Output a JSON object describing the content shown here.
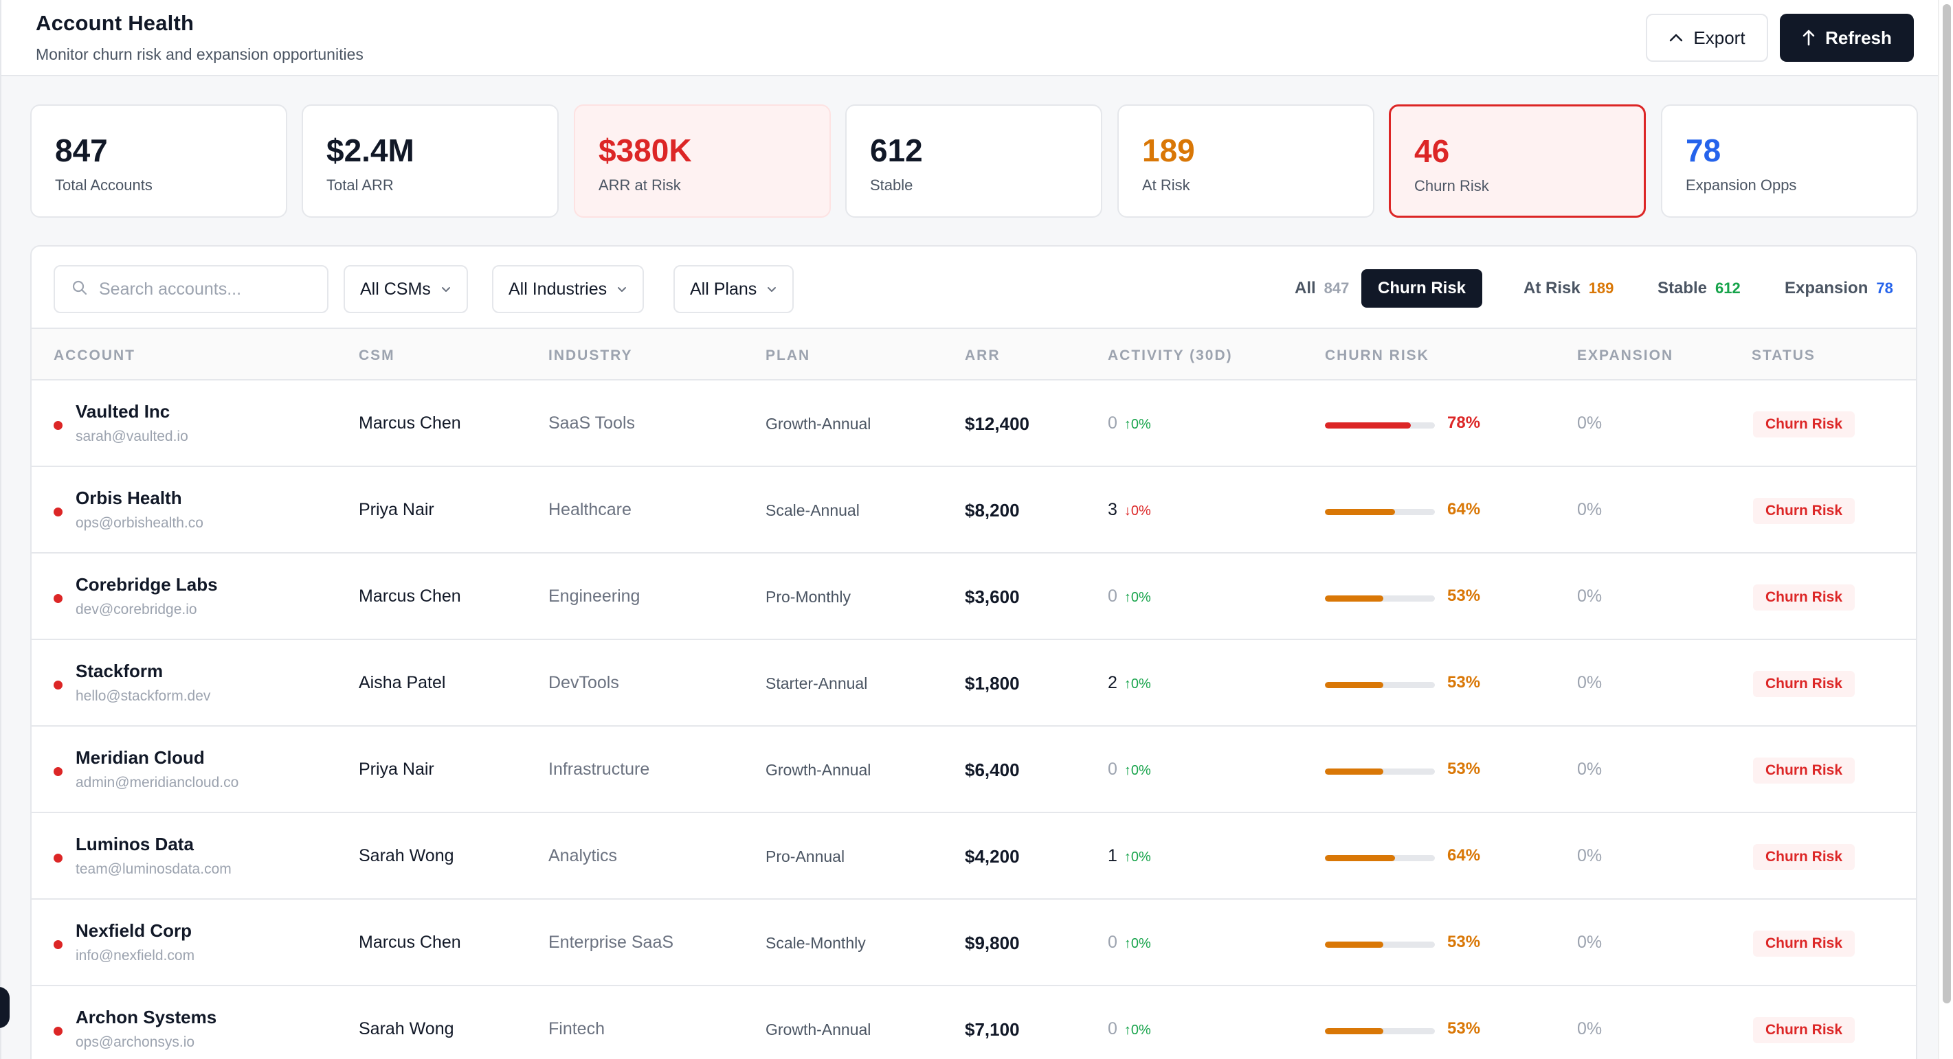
{
  "header": {
    "title": "Account Health",
    "subtitle": "Monitor churn risk and expansion opportunities",
    "export_label": "Export",
    "refresh_label": "Refresh"
  },
  "stats": [
    {
      "value": "847",
      "label": "Total Accounts",
      "color": "#111827"
    },
    {
      "value": "$2.4M",
      "label": "Total ARR",
      "color": "#111827"
    },
    {
      "value": "$380K",
      "label": "ARR at Risk",
      "color": "#dc2626"
    },
    {
      "value": "612",
      "label": "Stable",
      "color": "#111827"
    },
    {
      "value": "189",
      "label": "At Risk",
      "color": "#d97706"
    },
    {
      "value": "46",
      "label": "Churn Risk",
      "color": "#dc2626"
    },
    {
      "value": "78",
      "label": "Expansion Opps",
      "color": "#2563eb"
    }
  ],
  "filters": {
    "search_placeholder": "Search accounts...",
    "csm": "All CSMs",
    "industry": "All Industries",
    "plan": "All Plans"
  },
  "tabs": [
    {
      "label": "All",
      "count": "847",
      "count_color": "#9ca3af"
    },
    {
      "label": "Churn Risk",
      "count": "",
      "count_color": "#ffffff"
    },
    {
      "label": "At Risk",
      "count": "189",
      "count_color": "#d97706"
    },
    {
      "label": "Stable",
      "count": "612",
      "count_color": "#16a34a"
    },
    {
      "label": "Expansion",
      "count": "78",
      "count_color": "#2563eb"
    }
  ],
  "table": {
    "columns": [
      "ACCOUNT",
      "CSM",
      "INDUSTRY",
      "PLAN",
      "ARR",
      "ACTIVITY (30D)",
      "CHURN RISK",
      "EXPANSION",
      "STATUS"
    ],
    "rows": [
      {
        "name": "Vaulted Inc",
        "email": "sarah@vaulted.io",
        "csm": "Marcus Chen",
        "industry": "SaaS Tools",
        "plan": "Growth-Annual",
        "arr": "$12,400",
        "activity": "0",
        "trend": "↑0%",
        "trend_dir": "up",
        "risk": 78,
        "risk_label": "78%",
        "expansion": "0%",
        "status": "Churn Risk"
      },
      {
        "name": "Orbis Health",
        "email": "ops@orbishealth.co",
        "csm": "Priya Nair",
        "industry": "Healthcare",
        "plan": "Scale-Annual",
        "arr": "$8,200",
        "activity": "3",
        "trend": "↓0%",
        "trend_dir": "down",
        "risk": 64,
        "risk_label": "64%",
        "expansion": "0%",
        "status": "Churn Risk"
      },
      {
        "name": "Corebridge Labs",
        "email": "dev@corebridge.io",
        "csm": "Marcus Chen",
        "industry": "Engineering",
        "plan": "Pro-Monthly",
        "arr": "$3,600",
        "activity": "0",
        "trend": "↑0%",
        "trend_dir": "up",
        "risk": 53,
        "risk_label": "53%",
        "expansion": "0%",
        "status": "Churn Risk"
      },
      {
        "name": "Stackform",
        "email": "hello@stackform.dev",
        "csm": "Aisha Patel",
        "industry": "DevTools",
        "plan": "Starter-Annual",
        "arr": "$1,800",
        "activity": "2",
        "trend": "↑0%",
        "trend_dir": "up",
        "risk": 53,
        "risk_label": "53%",
        "expansion": "0%",
        "status": "Churn Risk"
      },
      {
        "name": "Meridian Cloud",
        "email": "admin@meridiancloud.co",
        "csm": "Priya Nair",
        "industry": "Infrastructure",
        "plan": "Growth-Annual",
        "arr": "$6,400",
        "activity": "0",
        "trend": "↑0%",
        "trend_dir": "up",
        "risk": 53,
        "risk_label": "53%",
        "expansion": "0%",
        "status": "Churn Risk"
      },
      {
        "name": "Luminos Data",
        "email": "team@luminosdata.com",
        "csm": "Sarah Wong",
        "industry": "Analytics",
        "plan": "Pro-Annual",
        "arr": "$4,200",
        "activity": "1",
        "trend": "↑0%",
        "trend_dir": "up",
        "risk": 64,
        "risk_label": "64%",
        "expansion": "0%",
        "status": "Churn Risk"
      },
      {
        "name": "Nexfield Corp",
        "email": "info@nexfield.com",
        "csm": "Marcus Chen",
        "industry": "Enterprise SaaS",
        "plan": "Scale-Monthly",
        "arr": "$9,800",
        "activity": "0",
        "trend": "↑0%",
        "trend_dir": "up",
        "risk": 53,
        "risk_label": "53%",
        "expansion": "0%",
        "status": "Churn Risk"
      },
      {
        "name": "Archon Systems",
        "email": "ops@archonsys.io",
        "csm": "Sarah Wong",
        "industry": "Fintech",
        "plan": "Growth-Annual",
        "arr": "$7,100",
        "activity": "0",
        "trend": "↑0%",
        "trend_dir": "up",
        "risk": 53,
        "risk_label": "53%",
        "expansion": "0%",
        "status": "Churn Risk"
      }
    ]
  },
  "colors": {
    "high_risk": "#dc2626",
    "medium_risk": "#d97706",
    "dark": "#111827"
  }
}
